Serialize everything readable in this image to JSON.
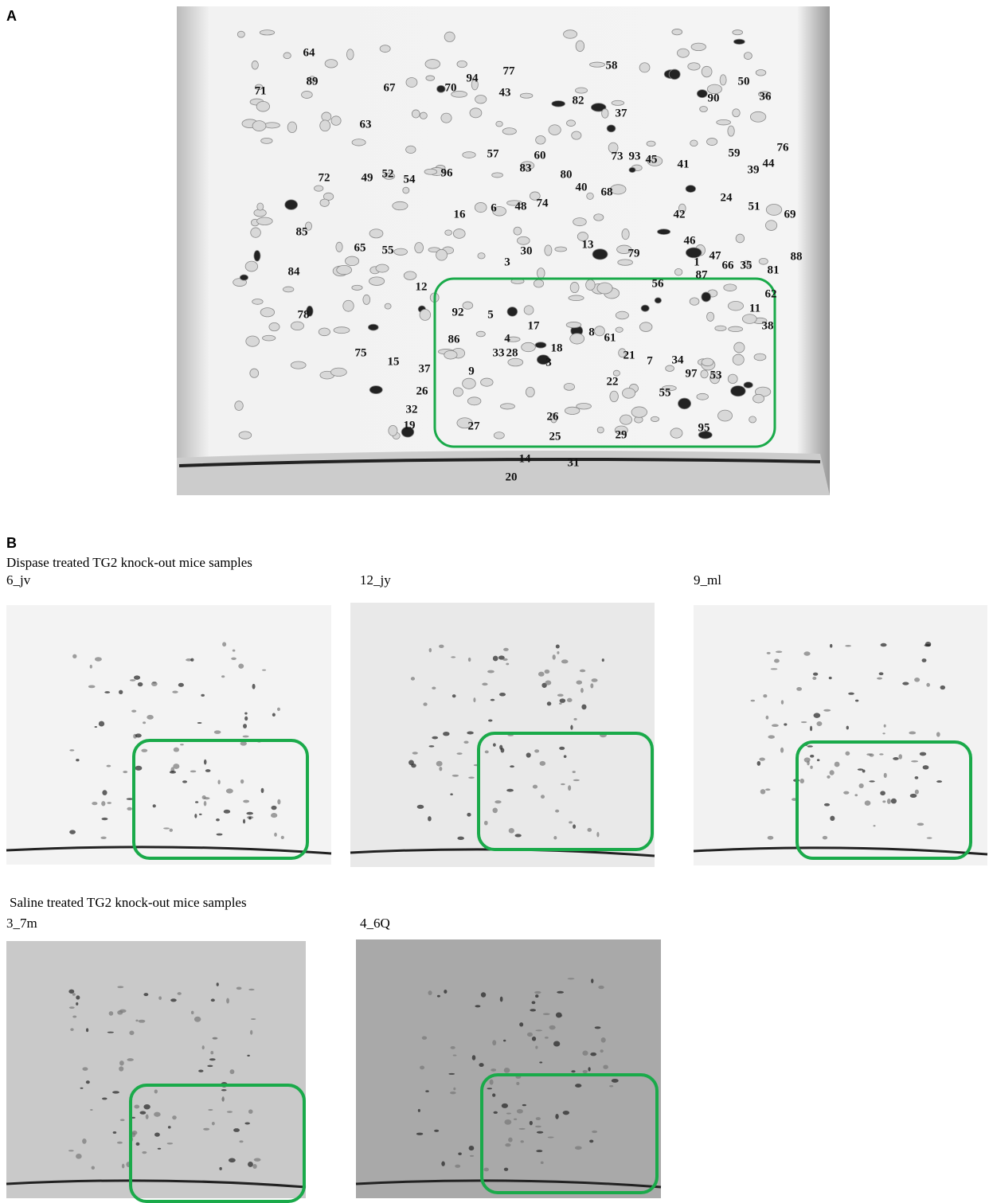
{
  "panel_a": {
    "label": "A",
    "spot_labels": [
      "64",
      "77",
      "58",
      "94",
      "70",
      "43",
      "50",
      "89",
      "71",
      "67",
      "90",
      "36",
      "82",
      "37",
      "63",
      "57",
      "83",
      "60",
      "80",
      "73",
      "93",
      "45",
      "76",
      "59",
      "44",
      "39",
      "72",
      "49",
      "52",
      "54",
      "96",
      "40",
      "68",
      "41",
      "24",
      "16",
      "6",
      "48",
      "74",
      "42",
      "51",
      "69",
      "30",
      "13",
      "79",
      "3",
      "46",
      "47",
      "66",
      "35",
      "81",
      "88",
      "85",
      "65",
      "55",
      "84",
      "87",
      "1",
      "62",
      "56",
      "11",
      "12",
      "92",
      "5",
      "17",
      "8",
      "38",
      "4",
      "78",
      "75",
      "15",
      "86",
      "18",
      "61",
      "21",
      "7",
      "34",
      "97",
      "53",
      "33",
      "28",
      "3",
      "37",
      "9",
      "22",
      "55",
      "26",
      "32",
      "27",
      "26",
      "19",
      "95",
      "29",
      "25",
      "14",
      "31",
      "20"
    ]
  },
  "panel_b": {
    "label": "B",
    "groups": [
      {
        "title": "Dispase treated TG2 knock-out mice samples",
        "samples": [
          "6_jv",
          "12_jy",
          "9_ml"
        ]
      },
      {
        "title": "Saline treated TG2 knock-out mice samples",
        "samples": [
          "3_7m",
          "4_6Q"
        ]
      }
    ]
  }
}
